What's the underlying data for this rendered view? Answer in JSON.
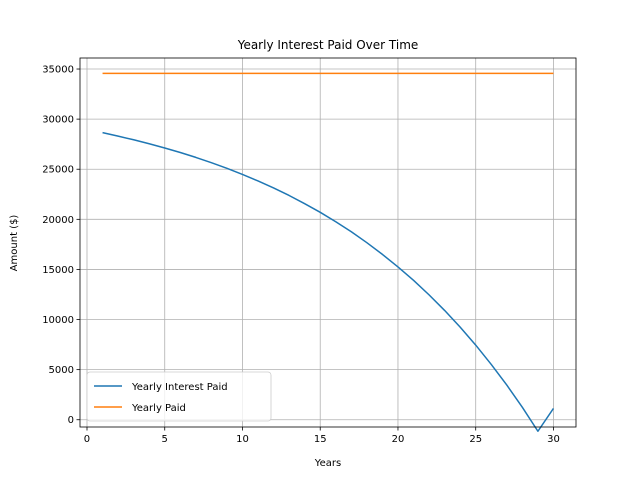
{
  "chart_data": {
    "type": "line",
    "title": "Yearly Interest Paid Over Time",
    "xlabel": "Years",
    "ylabel": "Amount ($)",
    "xlim": [
      -0.45,
      31.45
    ],
    "ylim": [
      -725,
      36100
    ],
    "xticks": [
      0,
      5,
      10,
      15,
      20,
      25,
      30
    ],
    "yticks": [
      0,
      5000,
      10000,
      15000,
      20000,
      25000,
      30000,
      35000
    ],
    "grid": true,
    "legend_position": "lower-left",
    "x": [
      1,
      2,
      3,
      4,
      5,
      6,
      7,
      8,
      9,
      10,
      11,
      12,
      13,
      14,
      15,
      16,
      17,
      18,
      19,
      20,
      21,
      22,
      23,
      24,
      25,
      26,
      27,
      28,
      29,
      30
    ],
    "series": [
      {
        "name": "Yearly Interest Paid",
        "color": "#1f77b4",
        "values": [
          28650,
          28300,
          27940,
          27540,
          27120,
          26670,
          26180,
          25650,
          25090,
          24480,
          23830,
          23130,
          22380,
          21560,
          20700,
          19760,
          18760,
          17670,
          16500,
          15250,
          13910,
          12460,
          10910,
          9240,
          7450,
          5520,
          3460,
          1240,
          -1150,
          1130
        ]
      },
      {
        "name": "Yearly Paid",
        "color": "#ff7f0e",
        "values": [
          34560,
          34560,
          34560,
          34560,
          34560,
          34560,
          34560,
          34560,
          34560,
          34560,
          34560,
          34560,
          34560,
          34560,
          34560,
          34560,
          34560,
          34560,
          34560,
          34560,
          34560,
          34560,
          34560,
          34560,
          34560,
          34560,
          34560,
          34560,
          34560,
          34560
        ]
      }
    ]
  }
}
